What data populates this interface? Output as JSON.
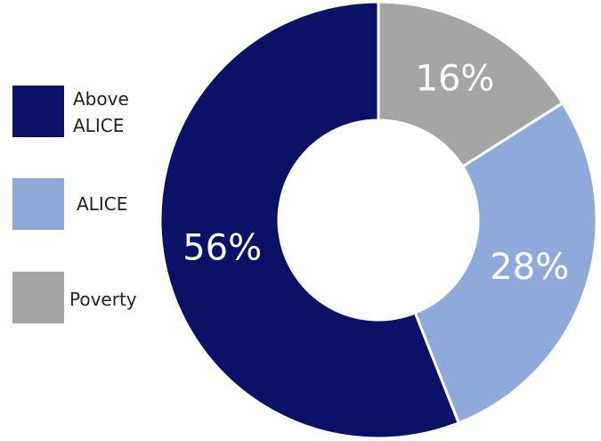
{
  "chart_data": {
    "type": "pie",
    "style": "donut",
    "legend_position": "left",
    "slices": [
      {
        "label": "Poverty",
        "value": 16,
        "display": "16%",
        "color": "#a5a5a5"
      },
      {
        "label": "ALICE",
        "value": 28,
        "display": "28%",
        "color": "#8eaadb"
      },
      {
        "label": "Above\nALICE",
        "value": 56,
        "display": "56%",
        "color": "#0b1166"
      }
    ],
    "legend": [
      {
        "label": "Above\nALICE",
        "color": "#0b1166"
      },
      {
        "label": "ALICE",
        "color": "#8eaadb"
      },
      {
        "label": "Poverty",
        "color": "#a5a5a5"
      }
    ]
  }
}
